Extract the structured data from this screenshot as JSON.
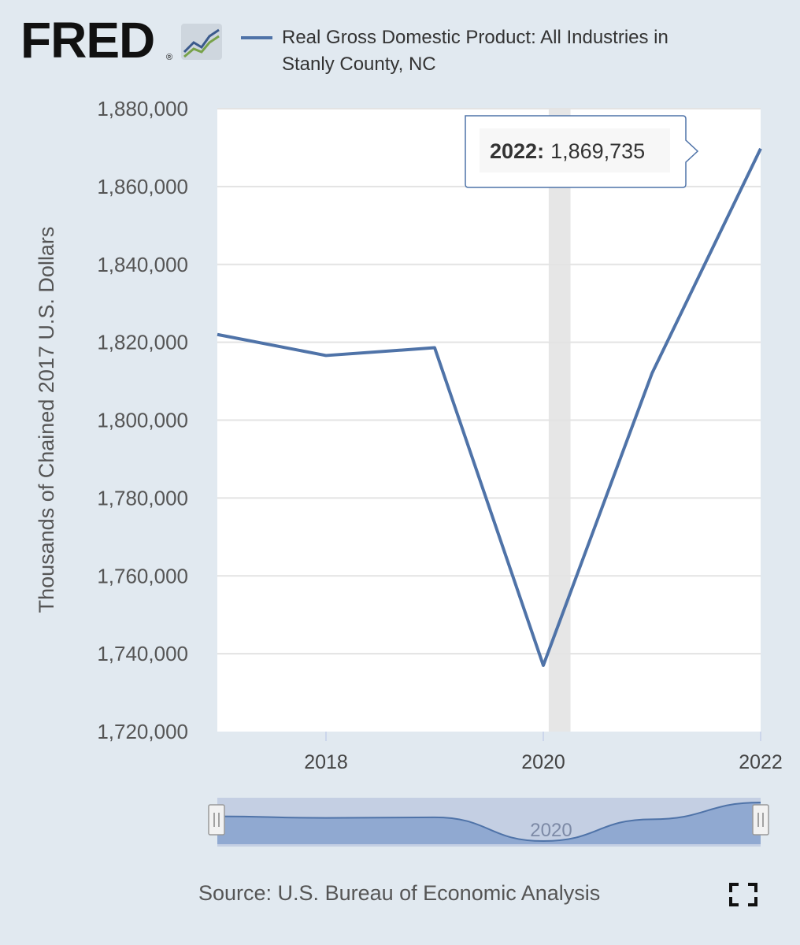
{
  "logo": {
    "text": "FRED",
    "mark": "®"
  },
  "chart_data": {
    "type": "line",
    "title": "Real Gross Domestic Product: All Industries in Stanly County, NC",
    "title_lines": [
      "Real Gross Domestic Product: All Industries in",
      "Stanly County, NC"
    ],
    "ylabel": "Thousands of Chained 2017 U.S. Dollars",
    "xlabel": "",
    "x_ticks": [
      "2018",
      "2020",
      "2022"
    ],
    "y_ticks": [
      1720000,
      1740000,
      1760000,
      1780000,
      1800000,
      1820000,
      1840000,
      1860000,
      1880000
    ],
    "y_tick_labels": [
      "1,720,000",
      "1,740,000",
      "1,760,000",
      "1,780,000",
      "1,800,000",
      "1,820,000",
      "1,840,000",
      "1,860,000",
      "1,880,000"
    ],
    "ylim": [
      1720000,
      1880000
    ],
    "xlim": [
      2017,
      2022
    ],
    "series": [
      {
        "name": "Real Gross Domestic Product: All Industries in Stanly County, NC",
        "color": "#4f73a8",
        "x": [
          2017,
          2018,
          2019,
          2020,
          2021,
          2022
        ],
        "values": [
          1822000,
          1816600,
          1818600,
          1737000,
          1812000,
          1869735
        ]
      }
    ],
    "recession_band": {
      "start": 2020.05,
      "end": 2020.25,
      "color": "#e6e6e6"
    },
    "tooltip": {
      "year": "2022:",
      "value": "1,869,735",
      "x": 2022
    },
    "navigator": {
      "label": "2020"
    },
    "grid": true,
    "legend": "top"
  },
  "source": {
    "text": "Source: U.S. Bureau of Economic Analysis"
  },
  "icons": {
    "fullscreen": "fullscreen-icon",
    "logo_chart": "line-chart-icon"
  }
}
